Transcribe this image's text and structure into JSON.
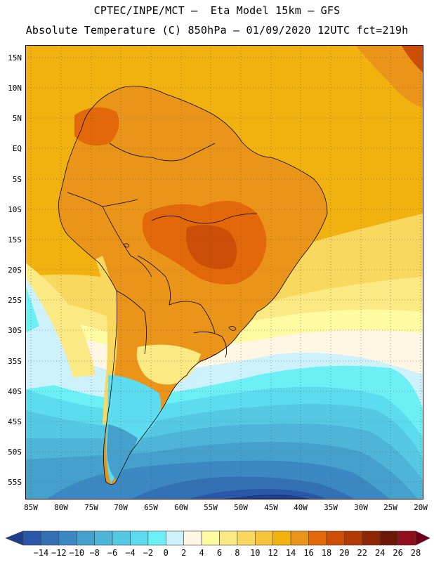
{
  "title_line1": "CPTEC/INPE/MCT –  Eta Model 15km – GFS",
  "title_line2": "Absolute Temperature (C) 850hPa – 01/09/2020 12UTC fct=219h",
  "lat_labels": [
    "15N",
    "10N",
    "5N",
    "EQ",
    "5S",
    "10S",
    "15S",
    "20S",
    "25S",
    "30S",
    "35S",
    "40S",
    "45S",
    "50S",
    "55S"
  ],
  "lon_labels": [
    "85W",
    "80W",
    "75W",
    "70W",
    "65W",
    "60W",
    "55W",
    "50W",
    "45W",
    "40W",
    "35W",
    "30W",
    "25W",
    "20W"
  ],
  "colorbar": {
    "labels": [
      "-14",
      "-12",
      "-10",
      "-8",
      "-6",
      "-4",
      "-2",
      "0",
      "2",
      "4",
      "6",
      "8",
      "10",
      "12",
      "14",
      "16",
      "18",
      "20",
      "22",
      "24",
      "26",
      "28"
    ],
    "colors": [
      "#1e3c8c",
      "#2a57a6",
      "#3370b4",
      "#3c88c2",
      "#46a0cc",
      "#4eb5d9",
      "#55c9e4",
      "#5cdcee",
      "#6cf0f5",
      "#cdf2fb",
      "#fff6e4",
      "#fffba2",
      "#fbe983",
      "#f8d85e",
      "#f6c43b",
      "#f1b10f",
      "#ea951a",
      "#e26809",
      "#cc4e07",
      "#b13b05",
      "#8c2605",
      "#6b1808",
      "#8e0f1b",
      "#6e0019"
    ]
  },
  "colors": {
    "ocean_cold": "#1e3c8c",
    "ocean_mid": "#46a0cc",
    "land_warm": "#ea951a",
    "land_hot": "#e26809",
    "gridline": "#555555"
  }
}
